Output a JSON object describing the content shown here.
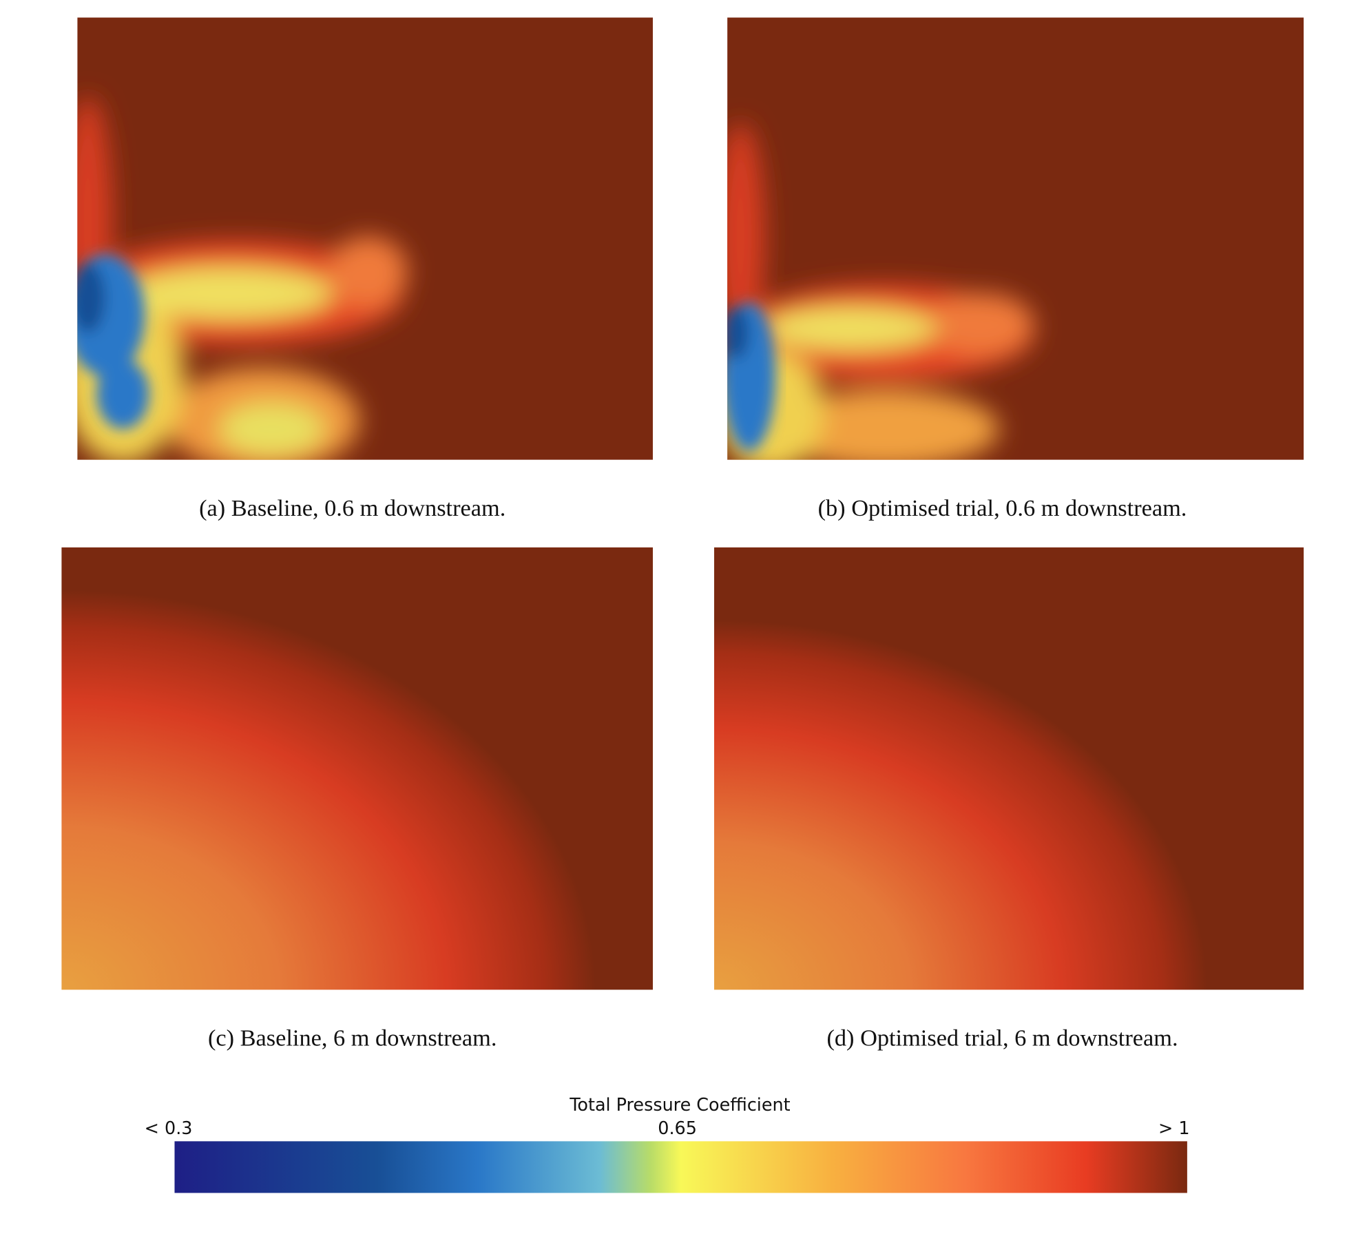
{
  "panels": [
    {
      "caption": "(a) Baseline, 0.6 m downstream."
    },
    {
      "caption": "(b) Optimised trial, 0.6 m downstream."
    },
    {
      "caption": "(c) Baseline, 6 m downstream."
    },
    {
      "caption": "(d) Optimised trial, 6 m downstream."
    }
  ],
  "colorbar": {
    "title": "Total Pressure Coefficient",
    "labels": [
      "< 0.3",
      "0.65",
      "> 1"
    ]
  }
}
